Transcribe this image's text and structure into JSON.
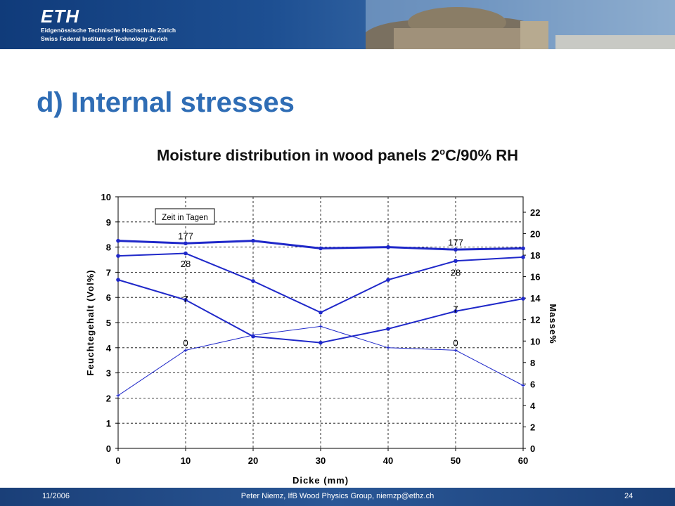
{
  "header": {
    "logo": "ETH",
    "line1": "Eidgenössische Technische Hochschule Zürich",
    "line2": "Swiss Federal Institute of Technology Zurich"
  },
  "slide": {
    "title": "d) Internal stresses",
    "subtitle_main": "Moisture distribution in wood panels  2",
    "subtitle_sup": "o",
    "subtitle_rest": "C/90% RH"
  },
  "chart_data": {
    "type": "line",
    "xlabel": "Dicke (mm)",
    "ylabel": "Feuchtegehalt (Vol%)",
    "ylabel2": "Masse%",
    "xlim": [
      0,
      60
    ],
    "ylim": [
      0,
      10
    ],
    "ylim2": [
      0,
      23.44
    ],
    "xticks": [
      0,
      10,
      20,
      30,
      40,
      50,
      60
    ],
    "yticks": [
      0,
      1,
      2,
      3,
      4,
      5,
      6,
      7,
      8,
      9,
      10
    ],
    "yticks2": [
      0,
      2,
      4,
      6,
      8,
      10,
      12,
      14,
      16,
      18,
      20,
      22
    ],
    "grid": true,
    "legend_box": "Zeit in Tagen",
    "series": [
      {
        "name": "0",
        "x": [
          0,
          10,
          20,
          30,
          40,
          50,
          60
        ],
        "values": [
          2.1,
          3.9,
          4.5,
          4.85,
          4.0,
          3.9,
          2.5
        ],
        "width": 1,
        "marker": "cross"
      },
      {
        "name": "7",
        "x": [
          0,
          10,
          20,
          30,
          40,
          50,
          60
        ],
        "values": [
          6.7,
          5.9,
          4.45,
          4.2,
          4.75,
          5.45,
          5.95
        ],
        "width": 2,
        "marker": "dot"
      },
      {
        "name": "28",
        "x": [
          0,
          10,
          20,
          30,
          40,
          50,
          60
        ],
        "values": [
          7.65,
          7.75,
          6.65,
          5.4,
          6.7,
          7.45,
          7.6
        ],
        "width": 2,
        "marker": "dot"
      },
      {
        "name": "177",
        "x": [
          0,
          10,
          20,
          30,
          40,
          50,
          60
        ],
        "values": [
          8.25,
          8.15,
          8.25,
          7.95,
          8.0,
          7.9,
          7.95
        ],
        "width": 3,
        "marker": "dot"
      }
    ],
    "annotations": [
      {
        "text": "177",
        "x": 10,
        "y": 8.45
      },
      {
        "text": "177",
        "x": 50,
        "y": 8.2
      },
      {
        "text": "28",
        "x": 10,
        "y": 7.35
      },
      {
        "text": "28",
        "x": 50,
        "y": 7.0
      },
      {
        "text": "7",
        "x": 10,
        "y": 5.95
      },
      {
        "text": "7",
        "x": 50,
        "y": 5.55
      },
      {
        "text": "0",
        "x": 10,
        "y": 4.2
      },
      {
        "text": "0",
        "x": 50,
        "y": 4.2
      }
    ]
  },
  "footer": {
    "date": "11/2006",
    "author": "Peter Niemz, IfB Wood Physics Group, niemzp@ethz.ch",
    "page": "24"
  }
}
